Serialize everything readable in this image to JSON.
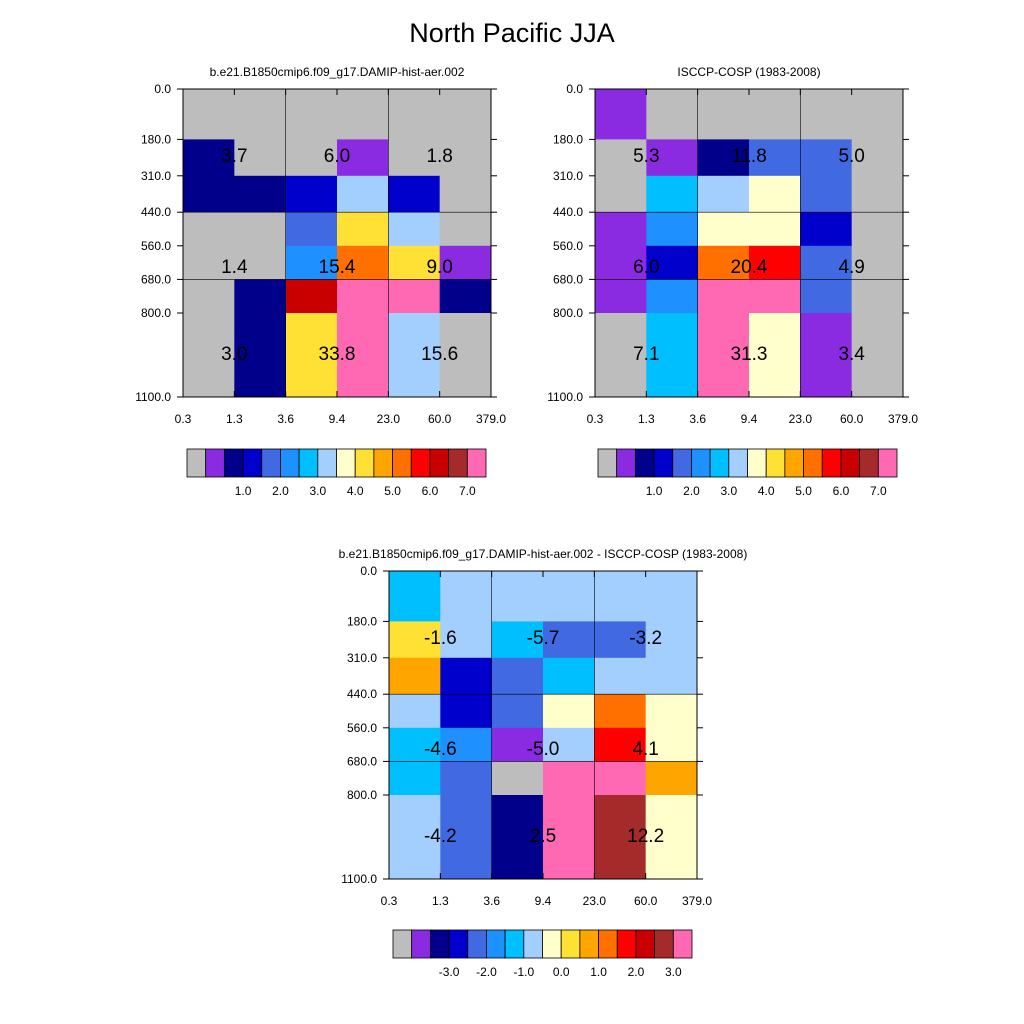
{
  "title": "North Pacific JJA",
  "colors": {
    "missing": "#bdbdbd",
    "grid_lines": "#000000",
    "palette": [
      "#8a2be2",
      "#00008b",
      "#0000cd",
      "#4169e1",
      "#1e90ff",
      "#00bfff",
      "#a2cffe",
      "#ffffcc",
      "#ffe135",
      "#ffa500",
      "#ff7000",
      "#ff0000",
      "#c80000",
      "#a52a2a",
      "#ff69b4"
    ]
  },
  "chart_data": [
    {
      "type": "heatmap",
      "title": "b.e21.B1850cmip6.f09_g17.DAMIP-hist-aer.002",
      "x_tick_labels": [
        "0.3",
        "1.3",
        "3.6",
        "9.4",
        "23.0",
        "60.0",
        "379.0"
      ],
      "y_tick_labels": [
        "0.0",
        "180.0",
        "310.0",
        "440.0",
        "560.0",
        "680.0",
        "800.0",
        "1100.0"
      ],
      "cell_color_index": [
        [
          -1,
          -1,
          -1,
          -1,
          -1,
          -1
        ],
        [
          1,
          -1,
          -1,
          0,
          -1,
          -1
        ],
        [
          1,
          1,
          2,
          6,
          2,
          -1
        ],
        [
          -1,
          -1,
          3,
          8,
          6,
          -1
        ],
        [
          -1,
          -1,
          4,
          10,
          8,
          0
        ],
        [
          -1,
          1,
          12,
          14,
          14,
          1
        ],
        [
          -1,
          1,
          8,
          14,
          6,
          -1
        ]
      ],
      "block_values": [
        [
          "3.7",
          "6.0",
          "1.8"
        ],
        [
          "1.4",
          "15.4",
          "9.0"
        ],
        [
          "3.0",
          "33.8",
          "15.6"
        ]
      ],
      "colorbar_labels": [
        "1.0",
        "2.0",
        "3.0",
        "4.0",
        "5.0",
        "6.0",
        "7.0"
      ]
    },
    {
      "type": "heatmap",
      "title": "ISCCP-COSP (1983-2008)",
      "x_tick_labels": [
        "0.3",
        "1.3",
        "3.6",
        "9.4",
        "23.0",
        "60.0",
        "379.0"
      ],
      "y_tick_labels": [
        "0.0",
        "180.0",
        "310.0",
        "440.0",
        "560.0",
        "680.0",
        "800.0",
        "1100.0"
      ],
      "cell_color_index": [
        [
          0,
          -1,
          -1,
          -1,
          -1,
          -1
        ],
        [
          -1,
          0,
          1,
          3,
          3,
          -1
        ],
        [
          -1,
          5,
          6,
          7,
          3,
          -1
        ],
        [
          0,
          4,
          7,
          7,
          2,
          -1
        ],
        [
          0,
          2,
          10,
          11,
          3,
          -1
        ],
        [
          0,
          4,
          14,
          14,
          3,
          -1
        ],
        [
          -1,
          5,
          14,
          7,
          0,
          -1
        ]
      ],
      "block_values": [
        [
          "5.3",
          "11.8",
          "5.0"
        ],
        [
          "6.0",
          "20.4",
          "4.9"
        ],
        [
          "7.1",
          "31.3",
          "3.4"
        ]
      ],
      "colorbar_labels": [
        "1.0",
        "2.0",
        "3.0",
        "4.0",
        "5.0",
        "6.0",
        "7.0"
      ]
    },
    {
      "type": "heatmap",
      "title": "b.e21.B1850cmip6.f09_g17.DAMIP-hist-aer.002 - ISCCP-COSP (1983-2008)",
      "x_tick_labels": [
        "0.3",
        "1.3",
        "3.6",
        "9.4",
        "23.0",
        "60.0",
        "379.0"
      ],
      "y_tick_labels": [
        "0.0",
        "180.0",
        "310.0",
        "440.0",
        "560.0",
        "680.0",
        "800.0",
        "1100.0"
      ],
      "cell_color_index": [
        [
          5,
          6,
          6,
          6,
          6,
          6
        ],
        [
          8,
          6,
          5,
          3,
          3,
          6
        ],
        [
          9,
          2,
          3,
          5,
          6,
          6
        ],
        [
          6,
          2,
          3,
          7,
          10,
          7
        ],
        [
          5,
          4,
          0,
          6,
          11,
          7
        ],
        [
          5,
          3,
          -1,
          14,
          14,
          9
        ],
        [
          6,
          3,
          1,
          14,
          13,
          7
        ]
      ],
      "block_values": [
        [
          "-1.6",
          "-5.7",
          "-3.2"
        ],
        [
          "-4.6",
          "-5.0",
          "4.1"
        ],
        [
          "-4.2",
          "2.5",
          "12.2"
        ]
      ],
      "colorbar_labels": [
        "-3.0",
        "-2.0",
        "-1.0",
        "0.0",
        "1.0",
        "2.0",
        "3.0"
      ]
    }
  ]
}
